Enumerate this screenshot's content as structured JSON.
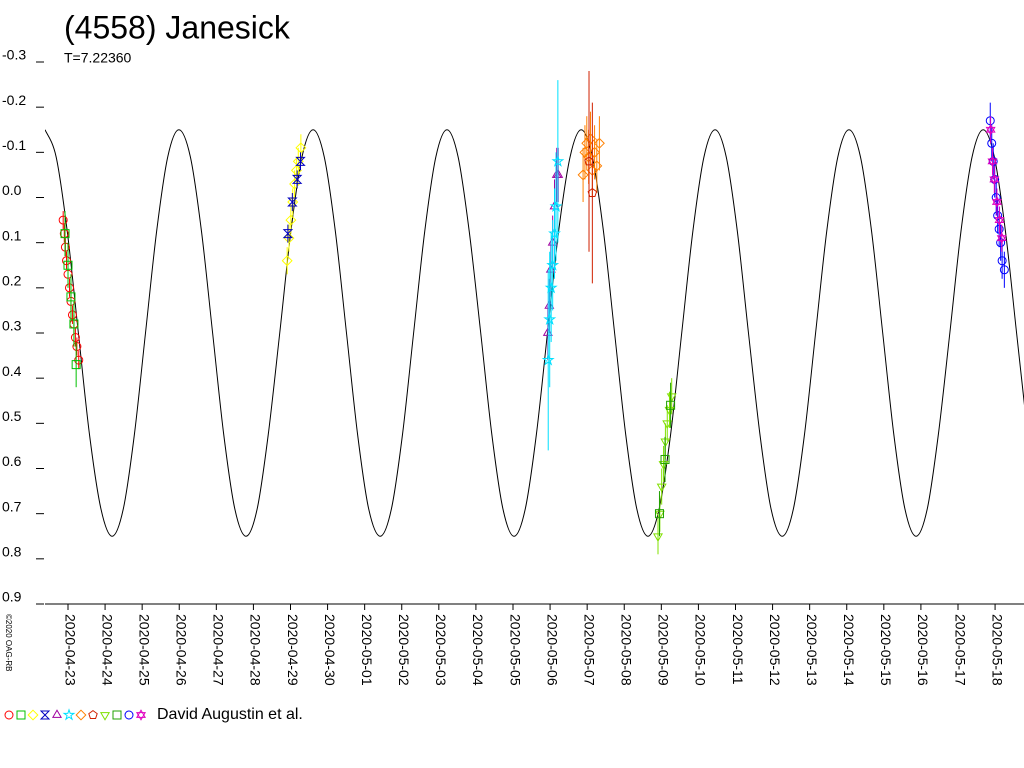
{
  "chart_data": {
    "type": "lightcurve",
    "title": "(4558) Janesick",
    "subtitle": "T=7.22360",
    "credit": "©2020 OAG-RB",
    "legend_label": "David Augustin et al.",
    "xlim": [
      58961.38,
      58987.78
    ],
    "ylim": [
      -0.3,
      0.9
    ],
    "y_inverted": true,
    "yticks": [
      -0.3,
      -0.2,
      -0.1,
      {
        "value": 0,
        "label": "0.0"
      },
      0.1,
      0.2,
      0.3,
      0.4,
      0.5,
      0.6,
      0.7,
      0.8,
      0.9
    ],
    "xticks": [
      {
        "value": 58962,
        "label": "2020-04-23"
      },
      {
        "value": 58963,
        "label": "2020-04-24"
      },
      {
        "value": 58964,
        "label": "2020-04-25"
      },
      {
        "value": 58965,
        "label": "2020-04-26"
      },
      {
        "value": 58966,
        "label": "2020-04-27"
      },
      {
        "value": 58967,
        "label": "2020-04-28"
      },
      {
        "value": 58968,
        "label": "2020-04-29"
      },
      {
        "value": 58969,
        "label": "2020-04-30"
      },
      {
        "value": 58970,
        "label": "2020-05-01"
      },
      {
        "value": 58971,
        "label": "2020-05-02"
      },
      {
        "value": 58972,
        "label": "2020-05-03"
      },
      {
        "value": 58973,
        "label": "2020-05-04"
      },
      {
        "value": 58974,
        "label": "2020-05-05"
      },
      {
        "value": 58975,
        "label": "2020-05-06"
      },
      {
        "value": 58976,
        "label": "2020-05-07"
      },
      {
        "value": 58977,
        "label": "2020-05-08"
      },
      {
        "value": 58978,
        "label": "2020-05-09"
      },
      {
        "value": 58979,
        "label": "2020-05-10"
      },
      {
        "value": 58980,
        "label": "2020-05-11"
      },
      {
        "value": 58981,
        "label": "2020-05-12"
      },
      {
        "value": 58982,
        "label": "2020-05-13"
      },
      {
        "value": 58983,
        "label": "2020-05-14"
      },
      {
        "value": 58984,
        "label": "2020-05-15"
      },
      {
        "value": 58985,
        "label": "2020-05-16"
      },
      {
        "value": 58986,
        "label": "2020-05-17"
      },
      {
        "value": 58987,
        "label": "2020-05-18"
      }
    ],
    "model": {
      "color": "#000000",
      "x": [
        58961.38,
        58961.68,
        58961.98,
        58962.28,
        58962.58,
        58962.89,
        58963.19,
        58963.49,
        58963.79,
        58964.09,
        58964.39,
        58964.69,
        58964.99,
        58965.3,
        58965.6,
        58965.9,
        58966.2,
        58966.5,
        58966.8,
        58967.1,
        58967.4,
        58967.71,
        58968.01,
        58968.31,
        58968.61,
        58968.91,
        58969.21,
        58969.51,
        58969.81,
        58970.11,
        58970.42,
        58970.72,
        58971.02,
        58971.32,
        58971.62,
        58971.92,
        58972.22,
        58972.52,
        58972.82,
        58973.13,
        58973.43,
        58973.73,
        58974.03,
        58974.33,
        58974.63,
        58974.93,
        58975.23,
        58975.54,
        58975.84,
        58976.14,
        58976.44,
        58976.74,
        58977.04,
        58977.34,
        58977.64,
        58977.94,
        58978.25,
        58978.55,
        58978.85,
        58979.15,
        58979.45,
        58979.75,
        58980.05,
        58980.35,
        58980.66,
        58980.96,
        58981.26,
        58981.56,
        58981.86,
        58982.16,
        58982.46,
        58982.76,
        58983.06,
        58983.37,
        58983.67,
        58983.97,
        58984.27,
        58984.57,
        58984.87,
        58985.17,
        58985.47,
        58985.78,
        58986.08,
        58986.38,
        58986.68,
        58986.98,
        58987.28,
        58987.58,
        58987.88
      ],
      "values": [
        -0.15,
        -0.09,
        0.075,
        0.3,
        0.525,
        0.69,
        0.75,
        0.69,
        0.525,
        0.3,
        0.075,
        -0.09,
        -0.15,
        -0.09,
        0.075,
        0.3,
        0.525,
        0.69,
        0.75,
        0.69,
        0.525,
        0.3,
        0.075,
        -0.09,
        -0.15,
        -0.09,
        0.075,
        0.3,
        0.525,
        0.69,
        0.75,
        0.69,
        0.525,
        0.3,
        0.075,
        -0.09,
        -0.15,
        -0.09,
        0.075,
        0.3,
        0.525,
        0.69,
        0.75,
        0.69,
        0.525,
        0.3,
        0.075,
        -0.09,
        -0.15,
        -0.09,
        0.075,
        0.3,
        0.525,
        0.69,
        0.75,
        0.69,
        0.525,
        0.3,
        0.075,
        -0.09,
        -0.15,
        -0.09,
        0.075,
        0.3,
        0.525,
        0.69,
        0.75,
        0.69,
        0.525,
        0.3,
        0.075,
        -0.09,
        -0.15,
        -0.09,
        0.075,
        0.3,
        0.525,
        0.69,
        0.75,
        0.69,
        0.525,
        0.3,
        0.075,
        -0.09,
        -0.15,
        -0.09,
        0.075,
        0.3,
        0.525
      ]
    },
    "series": [
      {
        "color": "#ff0000",
        "marker": "circle",
        "x": [
          58961.87,
          58961.9,
          58961.93,
          58961.96,
          58962.0,
          58962.04,
          58962.08,
          58962.12,
          58962.16,
          58962.2,
          58962.24,
          58962.29
        ],
        "values": [
          0.05,
          0.08,
          0.11,
          0.14,
          0.17,
          0.2,
          0.23,
          0.26,
          0.28,
          0.31,
          0.33,
          0.36
        ],
        "errors": [
          0.02,
          0.02,
          0.02,
          0.02,
          0.02,
          0.02,
          0.02,
          0.02,
          0.02,
          0.02,
          0.02,
          0.02
        ]
      },
      {
        "color": "#00c000",
        "marker": "square",
        "x": [
          58961.92,
          58962.0,
          58962.08,
          58962.16,
          58962.22
        ],
        "values": [
          0.08,
          0.15,
          0.22,
          0.28,
          0.37
        ],
        "errors": [
          0.05,
          0.05,
          0.05,
          0.05,
          0.05
        ]
      },
      {
        "color": "#ffff00",
        "marker": "diamond",
        "x": [
          58967.91,
          58967.96,
          58968.01,
          58968.06,
          58968.11,
          58968.16,
          58968.21,
          58968.28
        ],
        "values": [
          0.14,
          0.09,
          0.05,
          0.01,
          -0.03,
          -0.06,
          -0.08,
          -0.11
        ],
        "errors": [
          0.03,
          0.03,
          0.03,
          0.03,
          0.03,
          0.03,
          0.03,
          0.03
        ]
      },
      {
        "color": "#0000c0",
        "marker": "hourglass",
        "x": [
          58967.93,
          58968.05,
          58968.18,
          58968.27
        ],
        "values": [
          0.08,
          0.01,
          -0.04,
          -0.08
        ],
        "errors": [
          0.02,
          0.02,
          0.02,
          0.02
        ]
      },
      {
        "color": "#a000a0",
        "marker": "triangle",
        "x": [
          58974.94,
          58974.98,
          58975.02,
          58975.07,
          58975.12,
          58975.18,
          58975.22
        ],
        "values": [
          0.3,
          0.24,
          0.16,
          0.1,
          0.02,
          -0.05,
          -0.05
        ],
        "errors": [
          0.06,
          0.06,
          0.06,
          0.06,
          0.06,
          0.06,
          0.06
        ]
      },
      {
        "color": "#00e0ff",
        "marker": "star",
        "x": [
          58974.95,
          58974.99,
          58975.03,
          58975.07,
          58975.12,
          58975.16,
          58975.21
        ],
        "values": [
          0.36,
          0.27,
          0.2,
          0.15,
          0.08,
          0.02,
          -0.08
        ],
        "errors": [
          0.2,
          0.15,
          0.12,
          0.1,
          0.1,
          0.12,
          0.18
        ]
      },
      {
        "color": "#ff8000",
        "marker": "diamond",
        "x": [
          58975.89,
          58975.94,
          58975.99,
          58976.04,
          58976.09,
          58976.14,
          58976.2,
          58976.26,
          58976.33
        ],
        "values": [
          -0.05,
          -0.1,
          -0.12,
          -0.09,
          -0.13,
          -0.06,
          -0.1,
          -0.07,
          -0.12
        ],
        "errors": [
          0.06,
          0.06,
          0.06,
          0.06,
          0.06,
          0.06,
          0.06,
          0.06,
          0.06
        ]
      },
      {
        "color": "#d02000",
        "marker": "pentagon",
        "x": [
          58976.05,
          58976.14
        ],
        "values": [
          -0.08,
          -0.01
        ],
        "errors": [
          0.2,
          0.2
        ]
      },
      {
        "color": "#80e000",
        "marker": "triangle-down",
        "x": [
          58977.91,
          58977.96,
          58978.01,
          58978.06,
          58978.11,
          58978.16,
          58978.22,
          58978.28
        ],
        "values": [
          0.75,
          0.7,
          0.64,
          0.59,
          0.54,
          0.5,
          0.47,
          0.44
        ],
        "errors": [
          0.04,
          0.04,
          0.04,
          0.04,
          0.04,
          0.04,
          0.04,
          0.04
        ]
      },
      {
        "color": "#20a000",
        "marker": "square",
        "x": [
          58977.95,
          58978.1,
          58978.25
        ],
        "values": [
          0.7,
          0.58,
          0.46
        ],
        "errors": [
          0.05,
          0.05,
          0.05
        ]
      },
      {
        "color": "#0000ff",
        "marker": "circle",
        "x": [
          58986.87,
          58986.91,
          58986.95,
          58986.99,
          58987.03,
          58987.07,
          58987.11,
          58987.15,
          58987.19,
          58987.25
        ],
        "values": [
          -0.17,
          -0.12,
          -0.08,
          -0.04,
          0.0,
          0.04,
          0.07,
          0.1,
          0.14,
          0.16
        ],
        "errors": [
          0.04,
          0.04,
          0.04,
          0.04,
          0.04,
          0.04,
          0.04,
          0.04,
          0.04,
          0.04
        ]
      },
      {
        "color": "#e000c0",
        "marker": "hexagram",
        "x": [
          58986.88,
          58986.93,
          58986.98,
          58987.05,
          58987.12,
          58987.18
        ],
        "values": [
          -0.15,
          -0.08,
          -0.04,
          0.01,
          0.05,
          0.09
        ],
        "errors": [
          0.03,
          0.03,
          0.03,
          0.03,
          0.03,
          0.03
        ]
      }
    ]
  }
}
